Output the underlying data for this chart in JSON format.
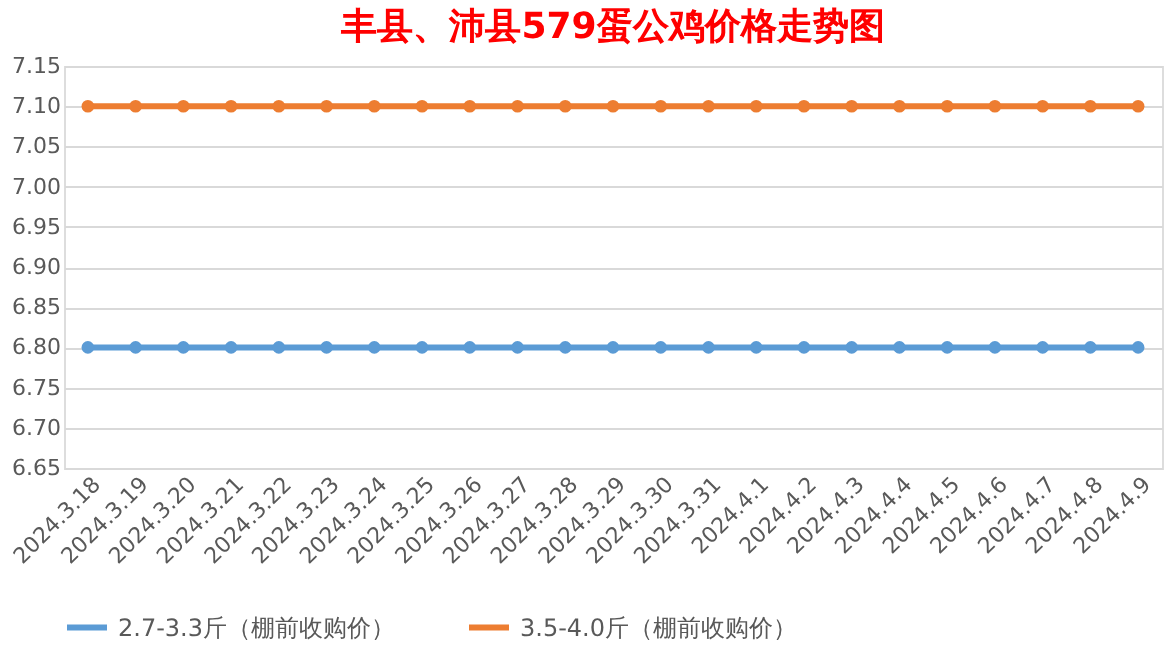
{
  "chart_data": {
    "type": "line",
    "title": "丰县、沛县579蛋公鸡价格走势图",
    "categories": [
      "2024.3.18",
      "2024.3.19",
      "2024.3.20",
      "2024.3.21",
      "2024.3.22",
      "2024.3.23",
      "2024.3.24",
      "2024.3.25",
      "2024.3.26",
      "2024.3.27",
      "2024.3.28",
      "2024.3.29",
      "2024.3.30",
      "2024.3.31",
      "2024.4.1",
      "2024.4.2",
      "2024.4.3",
      "2024.4.4",
      "2024.4.5",
      "2024.4.6",
      "2024.4.7",
      "2024.4.8",
      "2024.4.9"
    ],
    "series": [
      {
        "name": "2.7-3.3斤（棚前收购价）",
        "color": "#5b9bd5",
        "values": [
          6.8,
          6.8,
          6.8,
          6.8,
          6.8,
          6.8,
          6.8,
          6.8,
          6.8,
          6.8,
          6.8,
          6.8,
          6.8,
          6.8,
          6.8,
          6.8,
          6.8,
          6.8,
          6.8,
          6.8,
          6.8,
          6.8,
          6.8
        ]
      },
      {
        "name": "3.5-4.0斤（棚前收购价）",
        "color": "#ed7d31",
        "values": [
          7.1,
          7.1,
          7.1,
          7.1,
          7.1,
          7.1,
          7.1,
          7.1,
          7.1,
          7.1,
          7.1,
          7.1,
          7.1,
          7.1,
          7.1,
          7.1,
          7.1,
          7.1,
          7.1,
          7.1,
          7.1,
          7.1,
          7.1
        ]
      }
    ],
    "ylim": [
      6.65,
      7.15
    ],
    "yticks": [
      {
        "value": 6.65,
        "label": "6.65"
      },
      {
        "value": 6.7,
        "label": "6.70"
      },
      {
        "value": 6.75,
        "label": "6.75"
      },
      {
        "value": 6.8,
        "label": "6.80"
      },
      {
        "value": 6.85,
        "label": "6.85"
      },
      {
        "value": 6.9,
        "label": "6.90"
      },
      {
        "value": 6.95,
        "label": "6.95"
      },
      {
        "value": 7.0,
        "label": "7.00"
      },
      {
        "value": 7.05,
        "label": "7.05"
      },
      {
        "value": 7.1,
        "label": "7.10"
      },
      {
        "value": 7.15,
        "label": "7.15"
      }
    ],
    "grid": "y",
    "legend": "bottom",
    "marker": "circle",
    "line_style": "solid"
  }
}
